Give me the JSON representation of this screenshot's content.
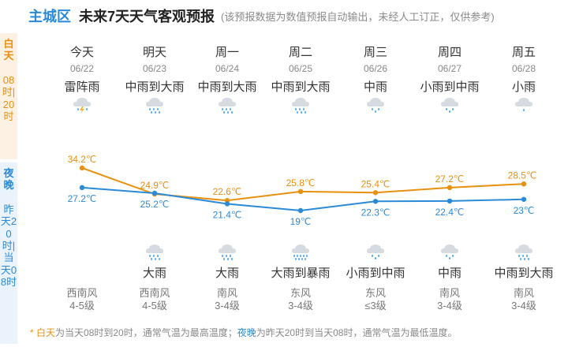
{
  "header": {
    "region": "主城区",
    "title": "未来7天天气客观预报",
    "note": "(该预报数据为数值预报自动输出，未经人工订正，仅供参考)"
  },
  "sidebar": {
    "day_title": "白天",
    "day_range": "08时|20时",
    "night_title": "夜晚",
    "night_range": "昨天20时|当天08时"
  },
  "days": [
    {
      "name": "今天",
      "date": "06/22",
      "day_cond": "雷阵雨",
      "day_icon": "thunder-rain-icon",
      "night_cond": "",
      "night_icon": "",
      "wind_dir": "西南风",
      "wind_level": "4-5级"
    },
    {
      "name": "明天",
      "date": "06/23",
      "day_cond": "中雨到大雨",
      "day_icon": "heavy-rain-icon",
      "night_cond": "大雨",
      "night_icon": "heavy-rain-icon",
      "wind_dir": "西南风",
      "wind_level": "4-5级"
    },
    {
      "name": "周一",
      "date": "06/24",
      "day_cond": "中雨到大雨",
      "day_icon": "heavy-rain-icon",
      "night_cond": "大雨",
      "night_icon": "heavy-rain-icon",
      "wind_dir": "南风",
      "wind_level": "3-4级"
    },
    {
      "name": "周二",
      "date": "06/25",
      "day_cond": "中雨到大雨",
      "day_icon": "heavy-rain-icon",
      "night_cond": "大雨到暴雨",
      "night_icon": "rainstorm-icon",
      "wind_dir": "东风",
      "wind_level": "3-4级"
    },
    {
      "name": "周三",
      "date": "06/26",
      "day_cond": "中雨",
      "day_icon": "moderate-rain-icon",
      "night_cond": "小雨到中雨",
      "night_icon": "moderate-rain-icon",
      "wind_dir": "东风",
      "wind_level": "≤3级"
    },
    {
      "name": "周四",
      "date": "06/27",
      "day_cond": "小雨到中雨",
      "day_icon": "moderate-rain-icon",
      "night_cond": "中雨",
      "night_icon": "moderate-rain-icon",
      "wind_dir": "南风",
      "wind_level": "3-4级"
    },
    {
      "name": "周五",
      "date": "06/28",
      "day_cond": "小雨",
      "day_icon": "light-rain-icon",
      "night_cond": "中雨到大雨",
      "night_icon": "heavy-rain-icon",
      "wind_dir": "南风",
      "wind_level": "3-4级"
    }
  ],
  "chart_data": {
    "type": "line",
    "x": [
      "06/22",
      "06/23",
      "06/24",
      "06/25",
      "06/26",
      "06/27",
      "06/28"
    ],
    "series": [
      {
        "name": "白天",
        "values": [
          34.2,
          24.9,
          22.6,
          25.8,
          25.4,
          27.2,
          28.5
        ],
        "labels": [
          "34.2℃",
          "24.9℃",
          "22.6℃",
          "25.8℃",
          "25.4℃",
          "27.2℃",
          "28.5℃"
        ],
        "color": "#e8900f"
      },
      {
        "name": "夜晚",
        "values": [
          27.2,
          25.2,
          21.4,
          19,
          22.3,
          22.4,
          23
        ],
        "labels": [
          "27.2℃",
          "25.2℃",
          "21.4℃",
          "19℃",
          "22.3℃",
          "22.4℃",
          "23℃"
        ],
        "color": "#2b8ad8"
      }
    ],
    "grid": false,
    "legend": "none"
  },
  "footer": {
    "star": "* ",
    "day_term": "白天",
    "day_text": "为当天08时到20时，通常气温为最高温度；",
    "night_term": "夜晚",
    "night_text": "为昨天20时到当天08时，通常气温为最低温度。"
  },
  "colors": {
    "day": "#e8900f",
    "night": "#2b8ad8",
    "cloud": "#d5dbe0",
    "rain": "#5aaef0",
    "bolt": "#f2b233"
  }
}
